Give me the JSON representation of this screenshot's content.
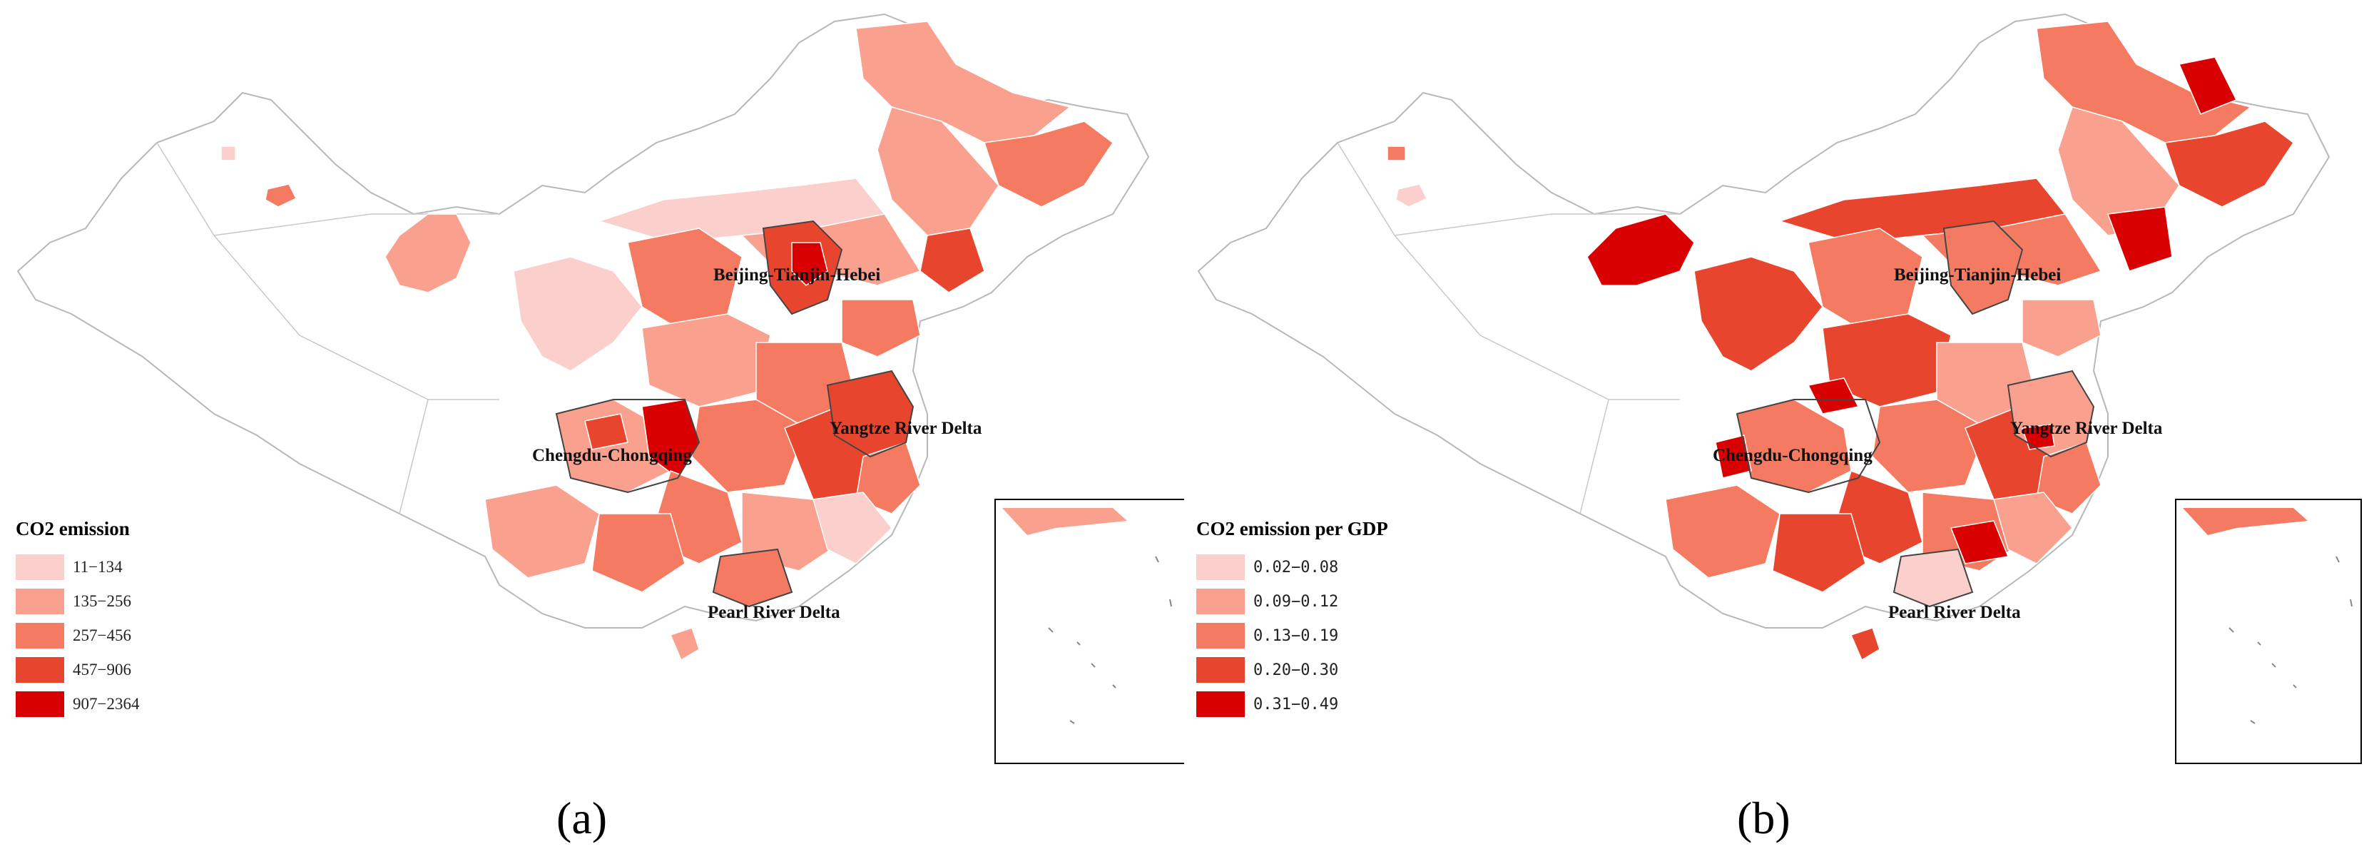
{
  "panels": [
    {
      "caption": "(a)",
      "legend": {
        "title": "CO2 emission",
        "items": [
          {
            "label": "11−134",
            "color": "#fbcfcb"
          },
          {
            "label": "135−256",
            "color": "#f9a08f"
          },
          {
            "label": "257−456",
            "color": "#f47a62"
          },
          {
            "label": "457−906",
            "color": "#e8452e"
          },
          {
            "label": "907−2364",
            "color": "#d80000"
          }
        ]
      },
      "region_labels": {
        "bth": "Beijing-Tianjin-Hebei",
        "yrd": "Yangtze River Delta",
        "cc": "Chengdu-Chongqing",
        "prd": "Pearl River Delta"
      }
    },
    {
      "caption": "(b)",
      "legend": {
        "title": "CO2 emission per GDP",
        "items": [
          {
            "label": "0.02−0.08",
            "color": "#fbcfcb"
          },
          {
            "label": "0.09−0.12",
            "color": "#f9a08f"
          },
          {
            "label": "0.13−0.19",
            "color": "#f47a62"
          },
          {
            "label": "0.20−0.30",
            "color": "#e8452e"
          },
          {
            "label": "0.31−0.49",
            "color": "#d80000"
          }
        ]
      },
      "region_labels": {
        "bth": "Beijing-Tianjin-Hebei",
        "yrd": "Yangtze River Delta",
        "cc": "Chengdu-Chongqing",
        "prd": "Pearl River Delta"
      }
    }
  ],
  "colors": {
    "class_1": "#fbcfcb",
    "class_2": "#f9a08f",
    "class_3": "#f47a62",
    "class_4": "#e8452e",
    "class_5": "#d80000",
    "outline": "#b8b8b8",
    "region_border": "#444444"
  }
}
